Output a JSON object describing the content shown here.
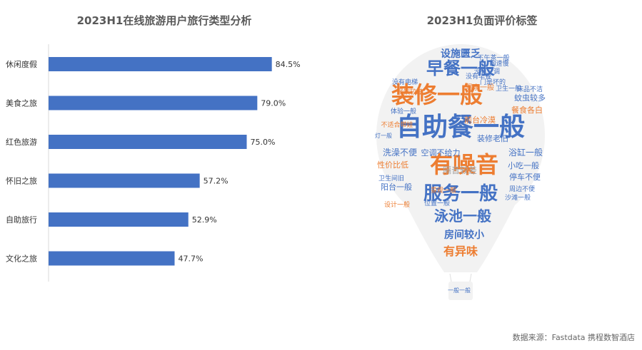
{
  "chart_data": [
    {
      "type": "bar",
      "orientation": "horizontal",
      "title": "2023H1在线旅游用户旅行类型分析",
      "categories": [
        "休闲度假",
        "美食之旅",
        "红色旅游",
        "怀旧之旅",
        "自助旅行",
        "文化之旅"
      ],
      "values": [
        84.5,
        79.0,
        75.0,
        57.2,
        52.9,
        47.7
      ],
      "value_labels": [
        "84.5%",
        "79.0%",
        "75.0%",
        "57.2%",
        "52.9%",
        "47.7%"
      ],
      "xlim": [
        0,
        100
      ],
      "unit": "%",
      "bar_color": "#4472C4",
      "grid": false
    },
    {
      "type": "wordcloud",
      "shape": "hot-air balloon",
      "title": "2023H1负面评价标签",
      "colors": {
        "blue": "#4472C4",
        "orange": "#ED7D31",
        "gray": "#A5A5A5"
      },
      "words": [
        {
          "text": "设施匮乏",
          "weight": 3,
          "color": "blue"
        },
        {
          "text": "早餐一般",
          "weight": 4,
          "color": "blue"
        },
        {
          "text": "装修一般",
          "weight": 5,
          "color": "orange"
        },
        {
          "text": "自助餐一般",
          "weight": 6,
          "color": "blue"
        },
        {
          "text": "有噪音",
          "weight": 5,
          "color": "orange"
        },
        {
          "text": "服务一般",
          "weight": 5,
          "color": "blue"
        },
        {
          "text": "泳池一般",
          "weight": 4,
          "color": "blue"
        },
        {
          "text": "房间较小",
          "weight": 3,
          "color": "blue"
        },
        {
          "text": "有异味",
          "weight": 3,
          "color": "orange"
        },
        {
          "text": "洗澡不便",
          "weight": 2,
          "color": "blue"
        },
        {
          "text": "空调不给力",
          "weight": 2,
          "color": "blue"
        },
        {
          "text": "浴缸一般",
          "weight": 3,
          "color": "blue"
        },
        {
          "text": "小吃一般",
          "weight": 2,
          "color": "blue"
        },
        {
          "text": "停车不便",
          "weight": 2,
          "color": "blue"
        },
        {
          "text": "蚊虫较多",
          "weight": 2,
          "color": "blue"
        },
        {
          "text": "性价比低",
          "weight": 2,
          "color": "orange"
        },
        {
          "text": "阳台一般",
          "weight": 2,
          "color": "blue"
        },
        {
          "text": "餐食各白",
          "weight": 2,
          "color": "orange"
        },
        {
          "text": "前台冷漠",
          "weight": 2,
          "color": "orange"
        },
        {
          "text": "装修老旧",
          "weight": 2,
          "color": "blue"
        },
        {
          "text": "隔音较差",
          "weight": 2,
          "color": "gray"
        },
        {
          "text": "没有空调",
          "weight": 1,
          "color": "blue"
        },
        {
          "text": "床品不洁",
          "weight": 1,
          "color": "blue"
        },
        {
          "text": "温泉一般",
          "weight": 1,
          "color": "orange"
        },
        {
          "text": "卫生间旧",
          "weight": 1,
          "color": "blue"
        },
        {
          "text": "周边不便",
          "weight": 1,
          "color": "blue"
        },
        {
          "text": "沙滩一般",
          "weight": 1,
          "color": "blue"
        },
        {
          "text": "位置一般",
          "weight": 1,
          "color": "blue"
        },
        {
          "text": "设计一般",
          "weight": 1,
          "color": "orange"
        },
        {
          "text": "没有电梯",
          "weight": 1,
          "color": "blue"
        },
        {
          "text": "体验一般",
          "weight": 1,
          "color": "blue"
        },
        {
          "text": "不适合带娃",
          "weight": 1,
          "color": "orange"
        },
        {
          "text": "餐饮较差",
          "weight": 1,
          "color": "orange"
        },
        {
          "text": "没有早餐",
          "weight": 1,
          "color": "blue"
        },
        {
          "text": "门是坏的",
          "weight": 1,
          "color": "blue"
        },
        {
          "text": "下午茶一般",
          "weight": 1,
          "color": "blue"
        },
        {
          "text": "卫生一般",
          "weight": 1,
          "color": "blue"
        },
        {
          "text": "灯一般",
          "weight": 1,
          "color": "blue"
        },
        {
          "text": "景观一般",
          "weight": 1,
          "color": "orange"
        },
        {
          "text": "网速慢",
          "weight": 1,
          "color": "blue"
        },
        {
          "text": "一般一般",
          "weight": 1,
          "color": "blue"
        }
      ]
    }
  ],
  "source_text": "数据来源：Fastdata 携程数智酒店"
}
